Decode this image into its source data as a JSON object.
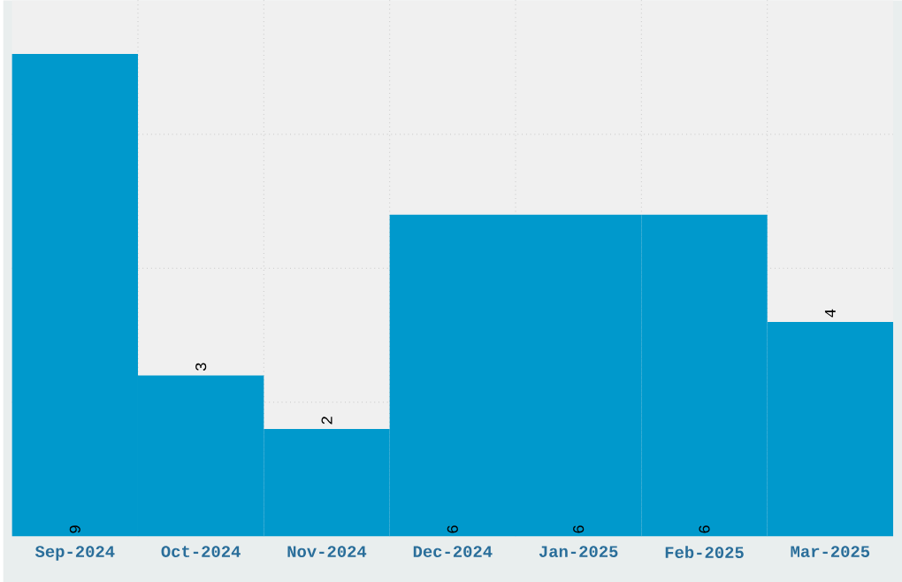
{
  "chart_data": {
    "type": "bar",
    "categories": [
      "Sep-2024",
      "Oct-2024",
      "Nov-2024",
      "Dec-2024",
      "Jan-2025",
      "Feb-2025",
      "Mar-2025"
    ],
    "values": [
      9,
      3,
      2,
      6,
      6,
      6,
      4
    ],
    "color": "#0099cc",
    "ylim": [
      0,
      10
    ],
    "yticks": [
      {
        "value": 2.5,
        "label": null
      },
      {
        "value": 5,
        "label": null
      },
      {
        "value": 7.5,
        "label": null
      }
    ],
    "grid": true,
    "data_labels": true
  }
}
